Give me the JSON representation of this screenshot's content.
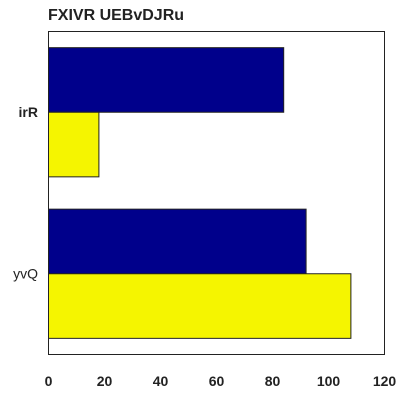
{
  "chart_data": {
    "type": "bar",
    "orientation": "horizontal",
    "title": "FXIVR UEBvDJRu",
    "xlabel": "",
    "ylabel": "",
    "categories": [
      "irR",
      "yvQ"
    ],
    "series": [
      {
        "color": "#00008b",
        "values": [
          84,
          92
        ]
      },
      {
        "color": "#f5f500",
        "values": [
          18,
          108
        ]
      }
    ],
    "xlim": [
      0,
      120
    ],
    "xticks": [
      0,
      20,
      40,
      60,
      80,
      100,
      120
    ],
    "grid": false,
    "legend": "none"
  }
}
